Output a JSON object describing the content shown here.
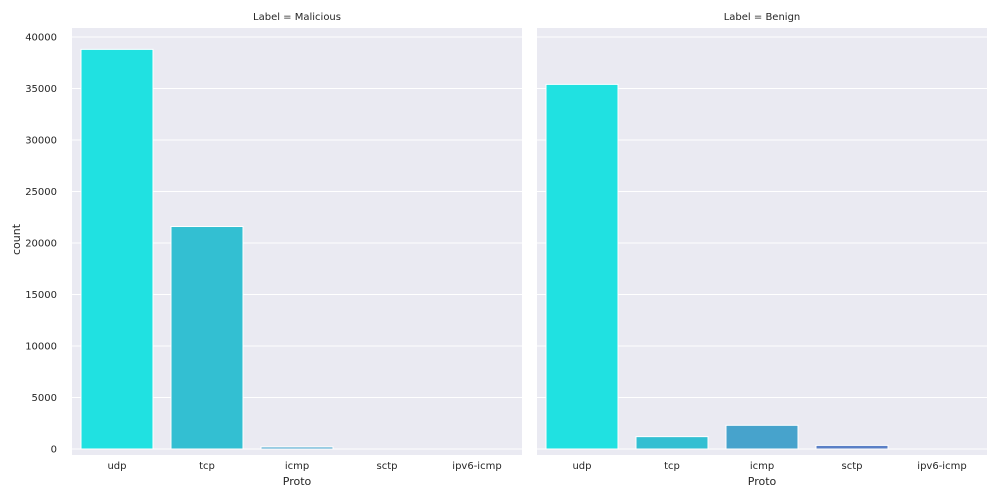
{
  "chart_data": [
    {
      "type": "bar",
      "title": "Label = Malicious",
      "xlabel": "Proto",
      "ylabel": "count",
      "categories": [
        "udp",
        "tcp",
        "icmp",
        "sctp",
        "ipv6-icmp"
      ],
      "values": [
        38800,
        21600,
        200,
        0,
        0
      ],
      "ylim": [
        0,
        40000
      ],
      "yticks": [
        0,
        5000,
        10000,
        15000,
        20000,
        25000,
        30000,
        35000,
        40000
      ],
      "grid": true
    },
    {
      "type": "bar",
      "title": "Label = Benign",
      "xlabel": "Proto",
      "ylabel": "",
      "categories": [
        "udp",
        "tcp",
        "icmp",
        "sctp",
        "ipv6-icmp"
      ],
      "values": [
        35400,
        1200,
        2300,
        350,
        0
      ],
      "ylim": [
        0,
        40000
      ],
      "yticks": [
        0,
        5000,
        10000,
        15000,
        20000,
        25000,
        30000,
        35000,
        40000
      ],
      "grid": true
    }
  ],
  "colors": {
    "udp": "#20e1e1",
    "tcp": "#33bfd2",
    "icmp": "#47a3cc",
    "sctp": "#5a7fc6",
    "ipv6-icmp": "#6a5fbf",
    "panel_bg": "#eaeaf2",
    "grid": "#ffffff"
  }
}
